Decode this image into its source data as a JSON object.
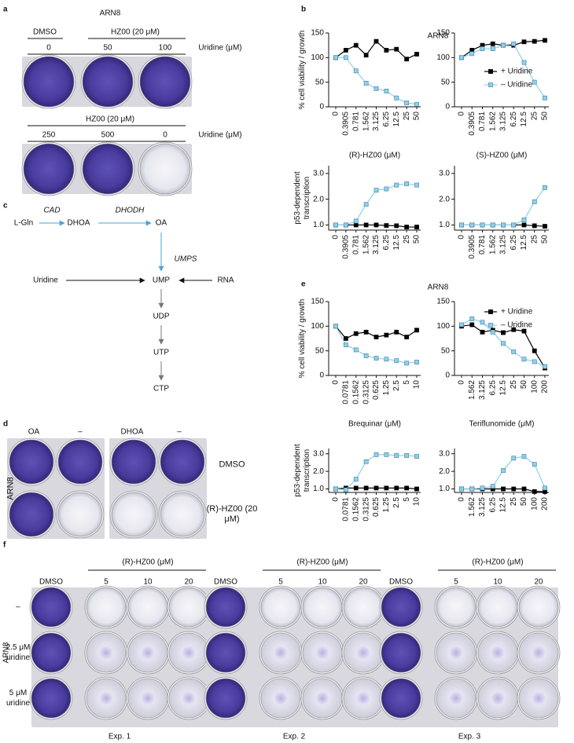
{
  "panels": [
    "a",
    "b",
    "c",
    "d",
    "e",
    "f"
  ],
  "panel_a": {
    "title": "ARN8",
    "top": {
      "groups": [
        "DMSO",
        "HZ00 (20 μM)"
      ],
      "doses": [
        "0",
        "50",
        "100"
      ],
      "dose_label": "Uridine (μM)"
    },
    "bottom": {
      "group": "HZ00 (20 μM)",
      "doses": [
        "250",
        "500",
        "0"
      ],
      "dose_label": "Uridine (μM)"
    }
  },
  "panel_b": {
    "title": "ARN8"
  },
  "panel_e": {
    "title": "ARN8"
  },
  "panel_c": {
    "nodes": [
      "L-Gln",
      "DHOA",
      "OA",
      "Uridine",
      "UMP",
      "RNA",
      "UDP",
      "UTP",
      "CTP"
    ],
    "enzymes": [
      "CAD",
      "DHODH",
      "UMPS"
    ]
  },
  "panel_d": {
    "columns": [
      "OA",
      "–",
      "DHOA",
      "–"
    ],
    "rows": [
      "DMSO",
      "(R)-HZ00 (20 μM)"
    ],
    "cell_line": "ARN8"
  },
  "panel_f": {
    "rows": [
      "–",
      "2.5 μM uridine",
      "5 μM uridine"
    ],
    "cell_line": "ARN8",
    "experiments": [
      {
        "name": "Exp. 1",
        "control": "DMSO",
        "treatment": "(R)-HZ00 (μM)",
        "doses": [
          "5",
          "10",
          "20"
        ]
      },
      {
        "name": "Exp. 2",
        "control": "DMSO",
        "treatment": "(R)-HZ00 (μM)",
        "doses": [
          "5",
          "10",
          "20"
        ]
      },
      {
        "name": "Exp. 3",
        "control": "DMSO",
        "treatment": "(R)-HZ00 (μM)",
        "doses": [
          "5",
          "10",
          "20"
        ]
      }
    ]
  },
  "chart_data": [
    {
      "type": "line",
      "y_label": "% cell viability / growth",
      "x_label": "(R)-HZ00 (μM)",
      "categories": [
        "0",
        "0.3905",
        "0.781",
        "1.562",
        "3.125",
        "6.25",
        "12.5",
        "25",
        "50"
      ],
      "series": [
        {
          "color": "#000000",
          "values": [
            100,
            115,
            125,
            105,
            133,
            115,
            117,
            97,
            107
          ]
        },
        {
          "color": "#8fd0ec",
          "values": [
            100,
            100,
            73,
            48,
            37,
            32,
            18,
            8,
            5
          ]
        }
      ],
      "ylim": [
        0,
        150
      ],
      "yticks": [
        0,
        50,
        100,
        150
      ]
    },
    {
      "type": "line",
      "x_label": "(S)-HZ00 (μM)",
      "legend": "right",
      "categories": [
        "0",
        "0.3905",
        "0.781",
        "1.562",
        "3.125",
        "6.25",
        "12.5",
        "25",
        "50"
      ],
      "series": [
        {
          "name": "+ Uridine",
          "color": "#000000",
          "values": [
            100,
            115,
            125,
            128,
            125,
            125,
            132,
            133,
            135
          ]
        },
        {
          "name": "– Uridine",
          "color": "#8fd0ec",
          "values": [
            100,
            108,
            118,
            118,
            125,
            128,
            90,
            50,
            18
          ]
        }
      ],
      "ylim": [
        0,
        150
      ],
      "yticks": [
        0,
        50,
        100,
        150
      ]
    },
    {
      "type": "line",
      "y_label": "p53-dependent transcription",
      "categories": [
        "0",
        "0.3905",
        "0.781",
        "1.562",
        "3.125",
        "6.25",
        "12.5",
        "25",
        "50"
      ],
      "series": [
        {
          "color": "#000000",
          "values": [
            1,
            1,
            1,
            1,
            1,
            0.98,
            0.97,
            0.92,
            0.92
          ]
        },
        {
          "color": "#8fd0ec",
          "values": [
            1,
            1,
            1.15,
            1.8,
            2.35,
            2.4,
            2.55,
            2.6,
            2.55
          ]
        }
      ],
      "ylim": [
        0.8,
        3.3
      ],
      "yticks": [
        {
          "value": 1,
          "label": "1.0"
        },
        {
          "value": 2,
          "label": "2.0"
        },
        {
          "value": 3,
          "label": "3.0"
        }
      ]
    },
    {
      "type": "line",
      "categories": [
        "0",
        "0.3905",
        "0.781",
        "1.562",
        "3.125",
        "6.25",
        "12.5",
        "25",
        "50"
      ],
      "series": [
        {
          "color": "#000000",
          "values": [
            1,
            1,
            1,
            1,
            1,
            1,
            1,
            0.97,
            0.95
          ]
        },
        {
          "color": "#8fd0ec",
          "values": [
            1,
            1,
            1,
            1,
            1,
            1,
            1.2,
            1.9,
            2.45
          ]
        }
      ],
      "ylim": [
        0.8,
        3.3
      ],
      "yticks": [
        {
          "value": 1,
          "label": "1.0"
        },
        {
          "value": 2,
          "label": "2.0"
        },
        {
          "value": 3,
          "label": "3.0"
        }
      ]
    },
    {
      "type": "line",
      "y_label": "% cell viability / growth",
      "x_label": "Brequinar (μM)",
      "categories": [
        "0",
        "0.0781",
        "0.1562",
        "0.3125",
        "0.625",
        "1.25",
        "2.5",
        "5",
        "10"
      ],
      "series": [
        {
          "color": "#000000",
          "values": [
            100,
            75,
            85,
            88,
            78,
            82,
            88,
            78,
            92
          ]
        },
        {
          "color": "#8fd0ec",
          "values": [
            100,
            62,
            52,
            40,
            35,
            33,
            30,
            25,
            27
          ]
        }
      ],
      "ylim": [
        0,
        150
      ],
      "yticks": [
        0,
        50,
        100,
        150
      ]
    },
    {
      "type": "line",
      "x_label": "Teriflunomide (μM)",
      "legend": "upper right",
      "categories": [
        "0",
        "1.562",
        "3.125",
        "6.25",
        "12.5",
        "25",
        "50",
        "100",
        "200"
      ],
      "series": [
        {
          "name": "+ Uridine",
          "color": "#000000",
          "values": [
            100,
            103,
            88,
            92,
            87,
            93,
            90,
            50,
            15
          ]
        },
        {
          "name": "– Uridine",
          "color": "#8fd0ec",
          "values": [
            103,
            115,
            108,
            88,
            65,
            48,
            33,
            28,
            18
          ]
        }
      ],
      "ylim": [
        0,
        150
      ],
      "yticks": [
        0,
        50,
        100,
        150
      ]
    },
    {
      "type": "line",
      "y_label": "p53-dependent transcription",
      "categories": [
        "0",
        "0.0781",
        "0.1562",
        "0.3125",
        "0.625",
        "1.25",
        "2.5",
        "5",
        "10"
      ],
      "series": [
        {
          "color": "#000000",
          "values": [
            1,
            1.05,
            1.05,
            1.05,
            1.05,
            1.05,
            1.05,
            1.05,
            1
          ]
        },
        {
          "color": "#8fd0ec",
          "values": [
            1,
            0.95,
            1.55,
            2.55,
            2.95,
            2.95,
            2.9,
            2.9,
            2.85
          ]
        }
      ],
      "ylim": [
        0.8,
        3.3
      ],
      "yticks": [
        {
          "value": 1,
          "label": "1.0"
        },
        {
          "value": 2,
          "label": "2.0"
        },
        {
          "value": 3,
          "label": "3.0"
        }
      ]
    },
    {
      "type": "line",
      "categories": [
        "0",
        "1.562",
        "3.125",
        "6.25",
        "12.5",
        "25",
        "50",
        "100",
        "200"
      ],
      "series": [
        {
          "color": "#000000",
          "values": [
            1,
            1,
            1,
            1,
            1,
            1,
            1,
            0.85,
            0.85
          ]
        },
        {
          "color": "#8fd0ec",
          "values": [
            1,
            1,
            1.05,
            1.15,
            2.05,
            2.75,
            2.85,
            2.4,
            1.05
          ]
        }
      ],
      "ylim": [
        0.8,
        3.3
      ],
      "yticks": [
        {
          "value": 1,
          "label": "1.0"
        },
        {
          "value": 2,
          "label": "2.0"
        },
        {
          "value": 3,
          "label": "3.0"
        }
      ]
    }
  ]
}
